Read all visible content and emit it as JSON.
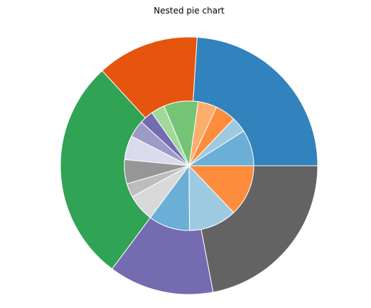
{
  "chart_data": {
    "type": "pie",
    "title": "Nested pie chart",
    "wedge_edge_color": "#ffffff",
    "outer_ring": {
      "values": [
        60,
        32,
        70,
        33,
        55
      ],
      "colors": [
        "#3182bd",
        "#e6550d",
        "#31a354",
        "#756bb1",
        "#636363",
        "#d9d9d9"
      ],
      "start_angle_deg": 0,
      "direction": "counterclockwise"
    },
    "inner_ring": {
      "values": [
        10.5,
        4.5,
        6,
        5.5,
        10,
        4,
        4,
        5,
        7,
        7,
        4,
        8,
        12,
        14,
        15
      ],
      "colors": [
        "#6baed6",
        "#9ecae1",
        "#fd8d3c",
        "#fdae6b",
        "#74c476",
        "#a1d99b",
        "#756bb1",
        "#9e9ac8",
        "#dadaeb",
        "#969696",
        "#bdbdbd",
        "#d9d9d9"
      ],
      "start_angle_deg": 0,
      "direction": "counterclockwise"
    }
  }
}
